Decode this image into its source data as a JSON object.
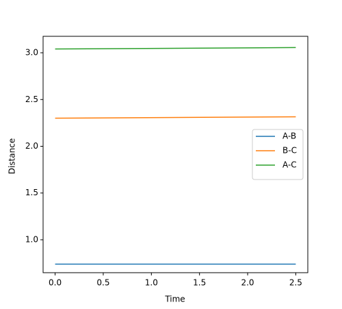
{
  "chart_data": {
    "type": "line",
    "x_label": "Time",
    "y_label": "Distance",
    "x": [
      0,
      2.5
    ],
    "series": [
      {
        "name": "A-B",
        "color": "#1f77b4",
        "values": [
          0.74,
          0.74
        ]
      },
      {
        "name": "B-C",
        "color": "#ff7f0e",
        "values": [
          2.3,
          2.315
        ]
      },
      {
        "name": "A-C",
        "color": "#2ca02c",
        "values": [
          3.04,
          3.056
        ]
      }
    ],
    "xlim": [
      -0.125,
      2.625
    ],
    "xticks": [
      {
        "value": 0,
        "label": "0.0"
      },
      0.5,
      {
        "value": 1,
        "label": "1.0"
      },
      1.5,
      {
        "value": 2,
        "label": "2.0"
      },
      2.5
    ],
    "ylim": [
      0.648,
      3.176
    ],
    "yticks": [
      {
        "value": 1,
        "label": "1.0"
      },
      1.5,
      {
        "value": 2,
        "label": "2.0"
      },
      2.5,
      {
        "value": 3,
        "label": "3.0"
      }
    ],
    "grid": false,
    "legend_position": "center right"
  }
}
